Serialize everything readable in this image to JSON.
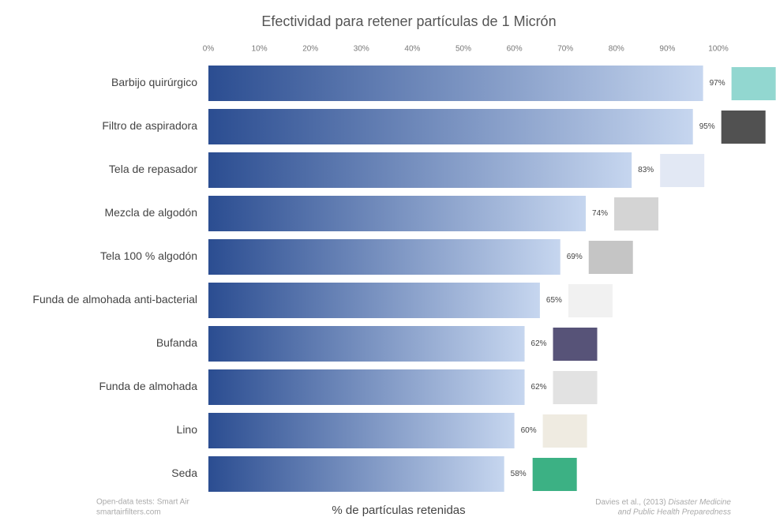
{
  "chart_data": {
    "type": "bar",
    "orientation": "horizontal",
    "title": "Efectividad para retener partículas de 1 Micrón",
    "x_label": "% de partículas retenidas",
    "categories": [
      "Barbijo quirúrgico",
      "Filtro de aspiradora",
      "Tela de repasador",
      "Mezcla de algodón",
      "Tela 100 % algodón",
      "Funda de almohada anti-bacterial",
      "Bufanda",
      "Funda de almohada",
      "Lino",
      "Seda"
    ],
    "values": [
      97,
      95,
      83,
      74,
      69,
      65,
      62,
      62,
      60,
      58
    ],
    "value_labels": [
      "97%",
      "95%",
      "83%",
      "74%",
      "69%",
      "65%",
      "62%",
      "62%",
      "60%",
      "58%"
    ],
    "color_start": "#2b4d91",
    "color_end": "#c6d6ef",
    "xlim": [
      0,
      100
    ],
    "xticks": [
      {
        "value": 0,
        "label": "0%"
      },
      {
        "value": 10,
        "label": "10%"
      },
      {
        "value": 20,
        "label": "20%"
      },
      {
        "value": 30,
        "label": "30%"
      },
      {
        "value": 40,
        "label": "40%"
      },
      {
        "value": 50,
        "label": "50%"
      },
      {
        "value": 60,
        "label": "60%"
      },
      {
        "value": 70,
        "label": "70%"
      },
      {
        "value": 80,
        "label": "80%"
      },
      {
        "value": 90,
        "label": "90%"
      },
      {
        "value": 100,
        "label": "100%"
      }
    ],
    "source_left": [
      "Open-data tests: Smart Air",
      "smartairfilters.com"
    ],
    "source_right": {
      "author": "Davies et al., (2013)",
      "journal_1": "Disaster Medicine",
      "journal_2": "and Public Health Preparedness"
    }
  }
}
